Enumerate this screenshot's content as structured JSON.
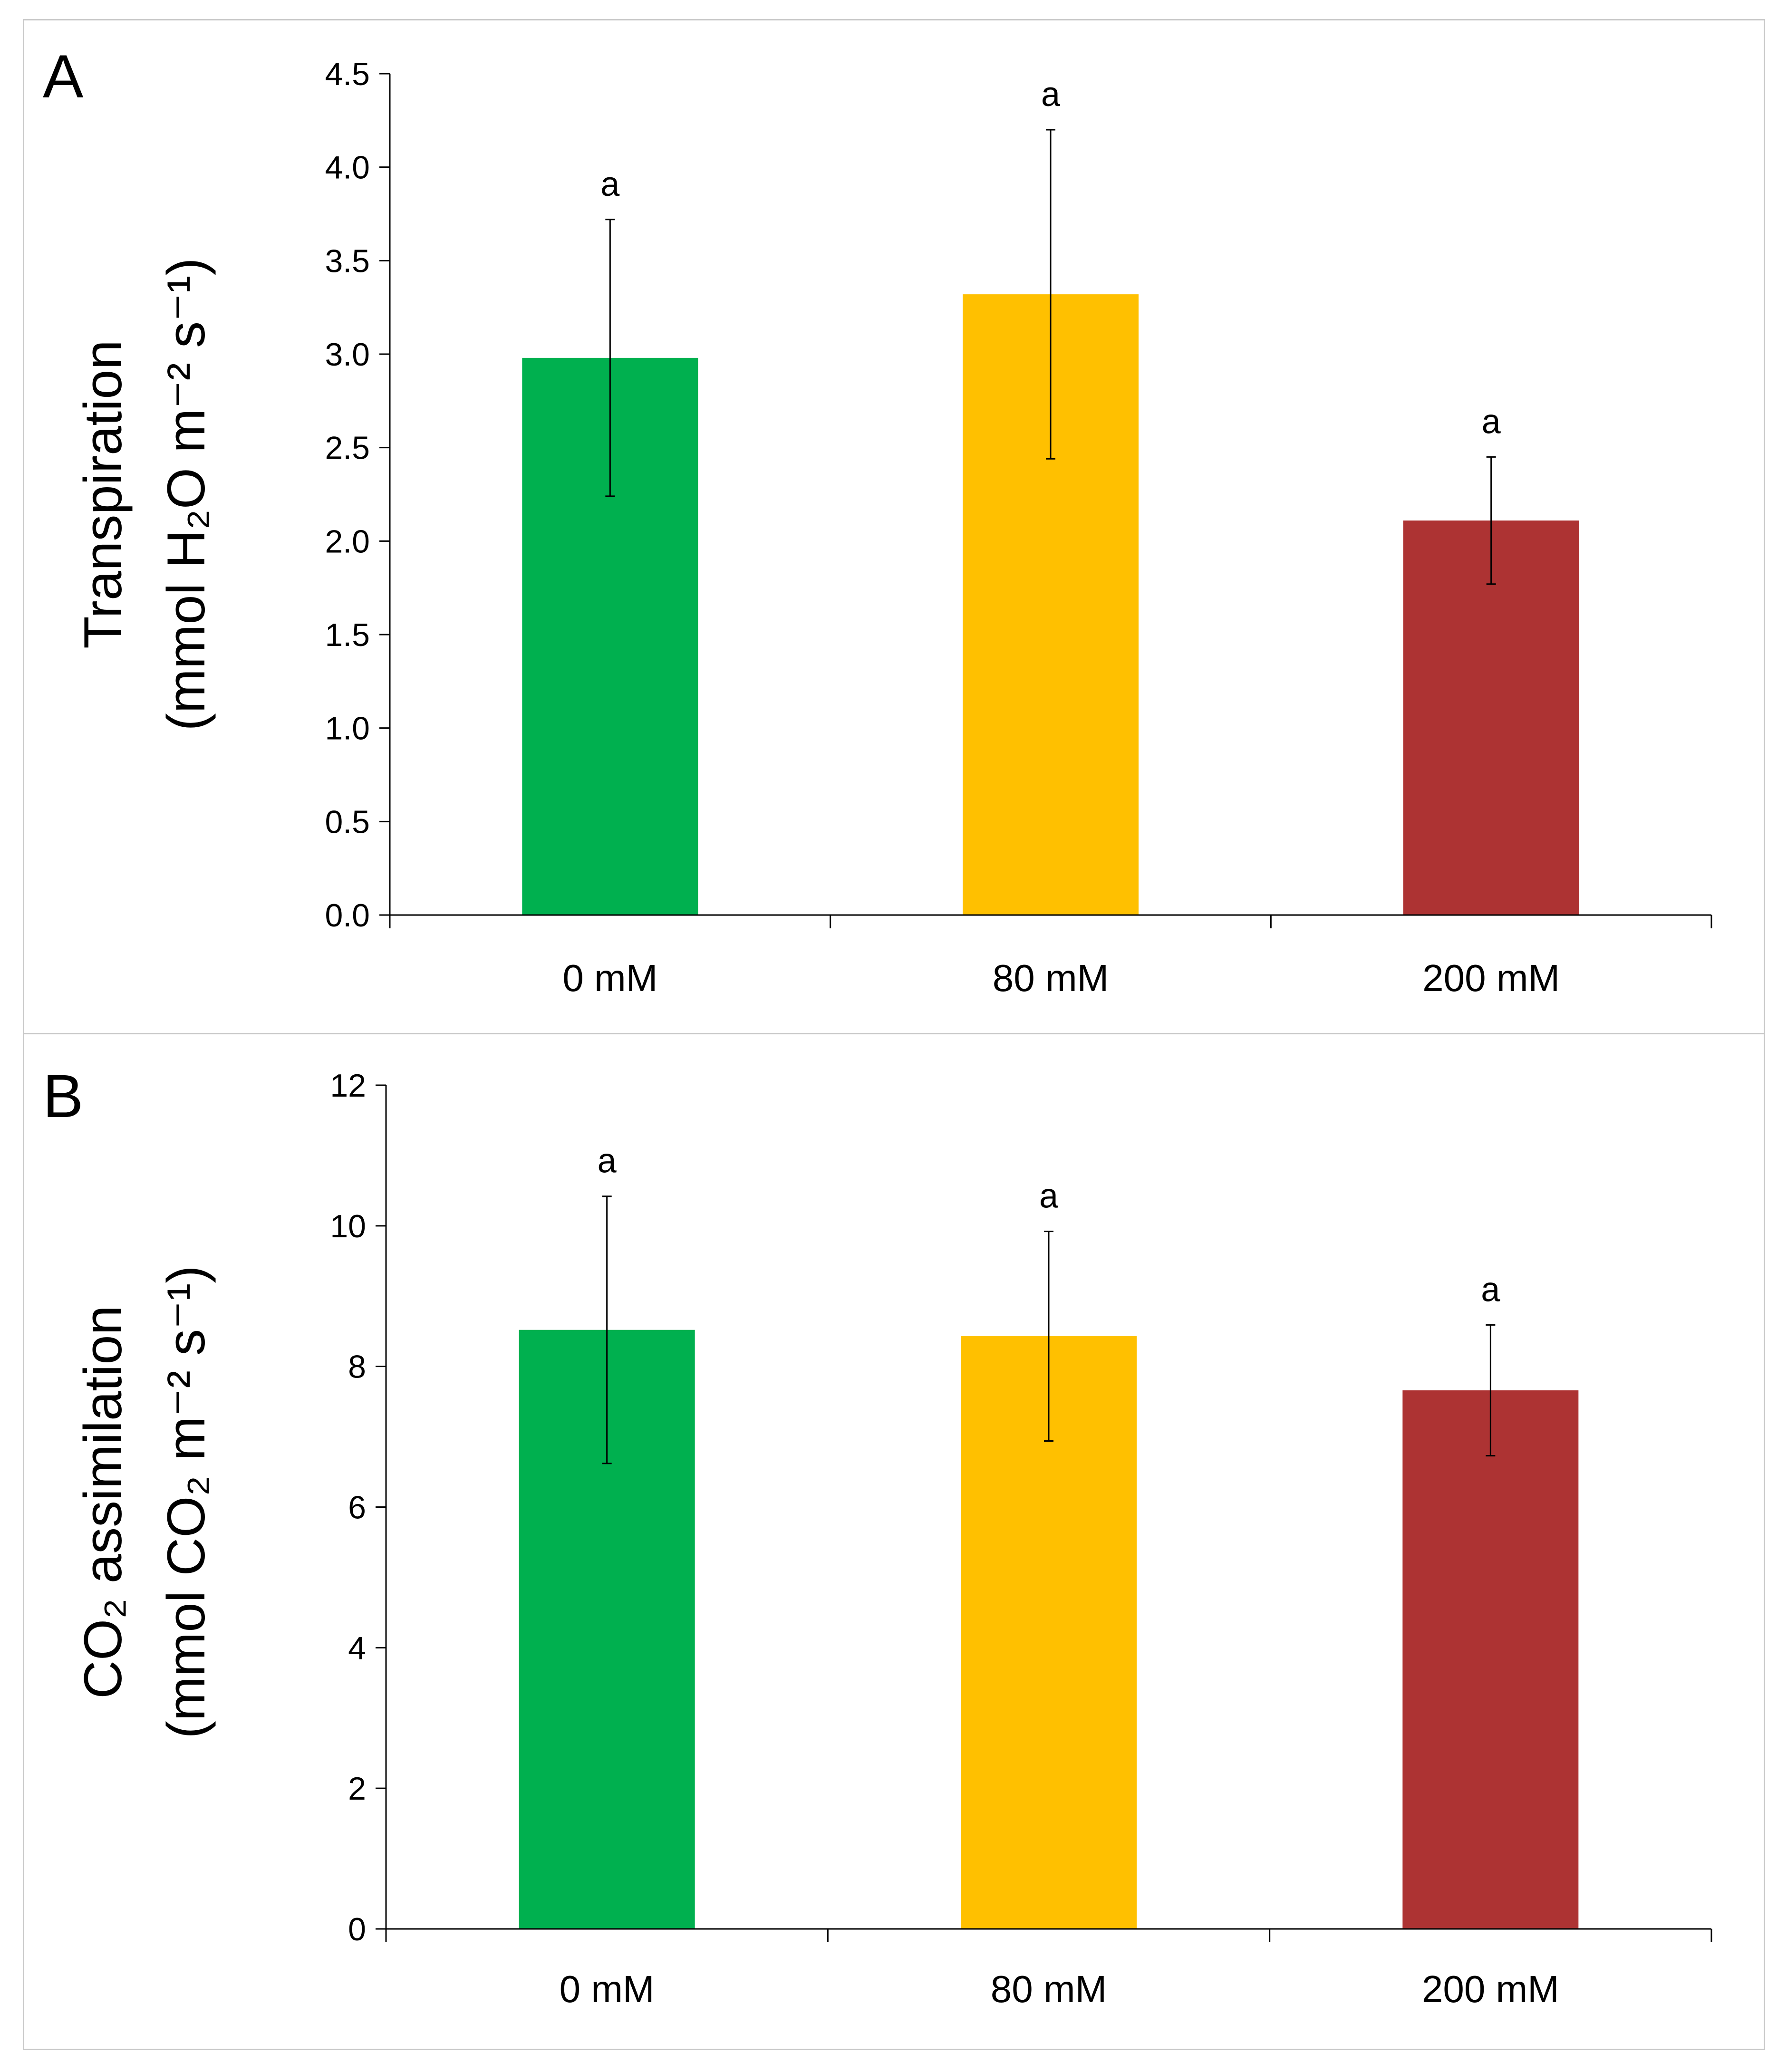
{
  "chart_data": [
    {
      "type": "bar",
      "panel_label": "A",
      "categories": [
        "0 mM",
        "80 mM",
        "200 mM"
      ],
      "values": [
        2.98,
        3.32,
        2.11
      ],
      "errors": [
        0.74,
        0.88,
        0.34
      ],
      "significance": [
        "a",
        "a",
        "a"
      ],
      "colors": [
        "#00B04F",
        "#FFC000",
        "#AD3333"
      ],
      "ylabel_line1": "Transpiration",
      "ylabel_line2": "(mmol H₂O m⁻² s⁻¹)",
      "ylim": [
        0,
        4.5
      ],
      "yticks": [
        "0.0",
        "0.5",
        "1.0",
        "1.5",
        "2.0",
        "2.5",
        "3.0",
        "3.5",
        "4.0",
        "4.5"
      ]
    },
    {
      "type": "bar",
      "panel_label": "B",
      "categories": [
        "0 mM",
        "80 mM",
        "200 mM"
      ],
      "values": [
        8.52,
        8.43,
        7.66
      ],
      "errors": [
        1.9,
        1.49,
        0.93
      ],
      "significance": [
        "a",
        "a",
        "a"
      ],
      "colors": [
        "#00B04F",
        "#FFC000",
        "#AD3333"
      ],
      "ylabel_line1": "CO₂ assimilation",
      "ylabel_line2": "(mmol CO₂ m⁻² s⁻¹)",
      "ylim": [
        0,
        12
      ],
      "yticks": [
        "0",
        "2",
        "4",
        "6",
        "8",
        "10",
        "12"
      ]
    }
  ]
}
